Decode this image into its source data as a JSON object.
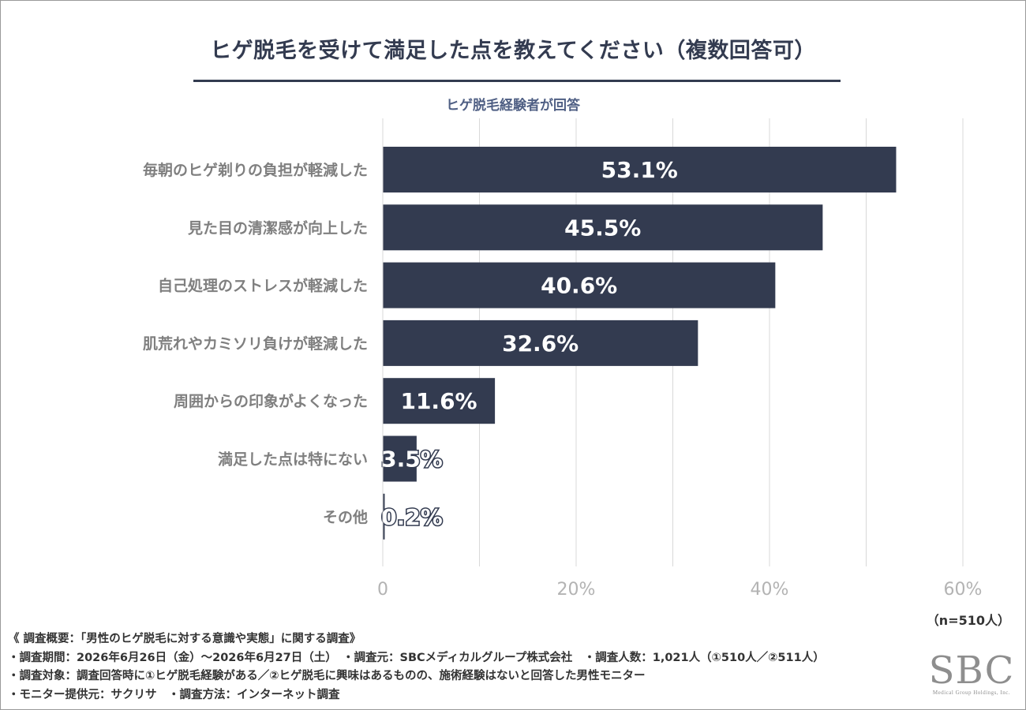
{
  "title": "ヒゲ脱毛を受けて満足した点を教えてください（複数回答可）",
  "subtitle": "ヒゲ脱毛経験者が回答",
  "sample_note": "（n=510人）",
  "colors": {
    "bar": "#333b50",
    "grid": "#d9d9d9",
    "title": "#333b50",
    "subtitle": "#4f5f84",
    "category_text": "#7f7f7f",
    "tick_text": "#b3b3b3"
  },
  "chart_data": {
    "type": "bar",
    "orientation": "horizontal",
    "categories": [
      "毎朝のヒゲ剃りの負担が軽減した",
      "見た目の清潔感が向上した",
      "自己処理のストレスが軽減した",
      "肌荒れやカミソリ負けが軽減した",
      "周囲からの印象がよくなった",
      "満足した点は特にない",
      "その他"
    ],
    "values": [
      53.1,
      45.5,
      40.6,
      32.6,
      11.6,
      3.5,
      0.2
    ],
    "value_labels": [
      "53.1%",
      "45.5%",
      "40.6%",
      "32.6%",
      "11.6%",
      "3.5%",
      "0.2%"
    ],
    "xlim": [
      0,
      60
    ],
    "x_ticks": [
      0,
      20,
      40,
      60
    ],
    "x_tick_labels": [
      "0",
      "20%",
      "40%",
      "60%"
    ],
    "grid": true
  },
  "notes": {
    "line1": "《 調査概要：「男性のヒゲ脱毛に対する意識や実態」に関する調査》",
    "line2": "・調査期間：2026年6月26日（金）～2026年6月27日（土）　・調査元：SBCメディカルグループ株式会社　・調査人数：1,021人（①510人／②511人）",
    "line3": "・調査対象：調査回答時に①ヒゲ脱毛経験がある／②ヒゲ脱毛に興味はあるものの、施術経験はないと回答した男性モニター",
    "line4": "・モニター提供元：サクリサ　・調査方法：インターネット調査"
  },
  "logo": {
    "text": "SBC",
    "subtext": "Medical Group Holdings, Inc."
  }
}
